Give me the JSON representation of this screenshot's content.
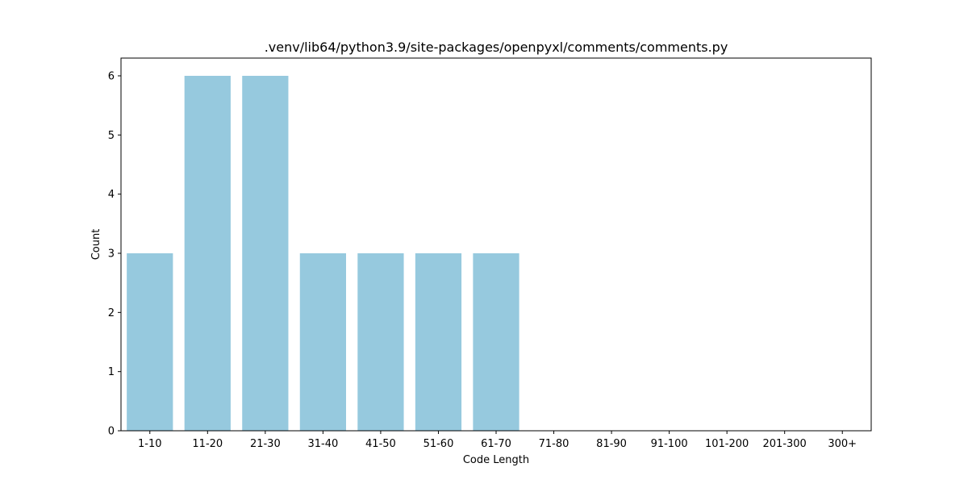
{
  "chart_data": {
    "type": "bar",
    "title": ".venv/lib64/python3.9/site-packages/openpyxl/comments/comments.py",
    "xlabel": "Code Length",
    "ylabel": "Count",
    "categories": [
      "1-10",
      "11-20",
      "21-30",
      "31-40",
      "41-50",
      "51-60",
      "61-70",
      "71-80",
      "81-90",
      "91-100",
      "101-200",
      "201-300",
      "300+"
    ],
    "values": [
      3,
      6,
      6,
      3,
      3,
      3,
      3,
      0,
      0,
      0,
      0,
      0,
      0
    ],
    "ylim": [
      0,
      6.3
    ],
    "yticks": [
      0,
      1,
      2,
      3,
      4,
      5,
      6
    ],
    "grid": false,
    "legend": "none",
    "bar_color": "#96c9de"
  }
}
